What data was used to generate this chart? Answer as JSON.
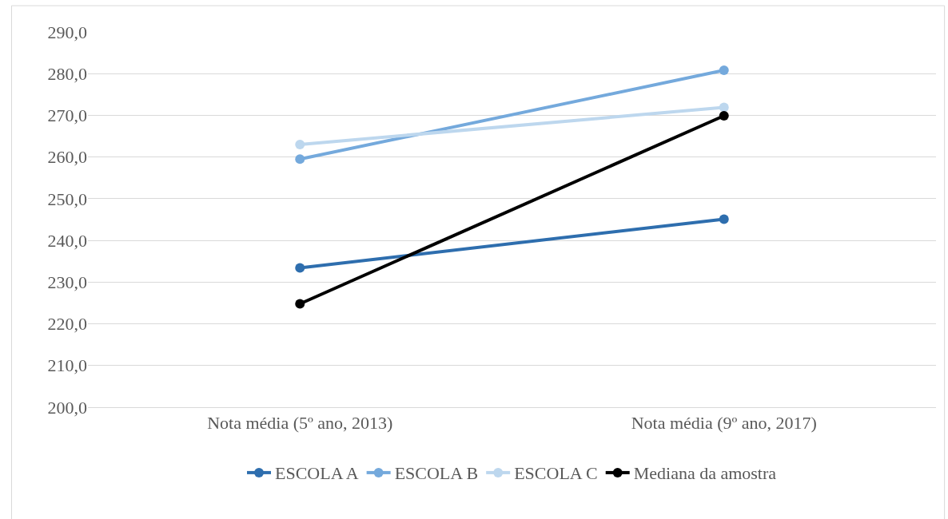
{
  "chart_data": {
    "type": "line",
    "categories": [
      "Nota média (5º ano, 2013)",
      "Nota média (9º ano, 2017)"
    ],
    "series": [
      {
        "name": "ESCOLA A",
        "color": "#2e6eae",
        "values": [
          233.4,
          245.1
        ]
      },
      {
        "name": "ESCOLA B",
        "color": "#74a9dc",
        "values": [
          259.5,
          280.8
        ]
      },
      {
        "name": "ESCOLA C",
        "color": "#bdd7ee",
        "values": [
          263.0,
          271.9
        ]
      },
      {
        "name": "Mediana da amostra",
        "color": "#000000",
        "values": [
          224.8,
          269.9
        ]
      }
    ],
    "ylim": [
      200,
      290
    ],
    "yticks": [
      {
        "value": 200,
        "label": "200,0"
      },
      {
        "value": 210,
        "label": "210,0"
      },
      {
        "value": 220,
        "label": "220,0"
      },
      {
        "value": 230,
        "label": "230,0"
      },
      {
        "value": 240,
        "label": "240,0"
      },
      {
        "value": 250,
        "label": "250,0"
      },
      {
        "value": 260,
        "label": "260,0"
      },
      {
        "value": 270,
        "label": "270,0"
      },
      {
        "value": 280,
        "label": "280,0"
      },
      {
        "value": 290,
        "label": "290,0"
      }
    ],
    "grid": "y",
    "legend": "bottom",
    "marker": "circle",
    "line_style": "solid"
  }
}
